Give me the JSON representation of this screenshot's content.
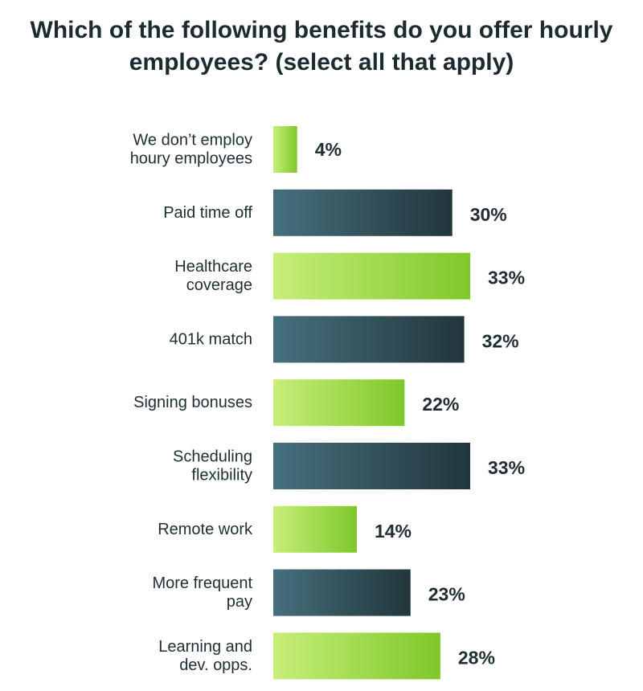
{
  "title_lines": [
    "Which of the following benefits do you offer hourly",
    "employees? (select all that apply)"
  ],
  "colors": {
    "green_start": "#c7ee79",
    "green_end": "#7ec82a",
    "teal_start": "#46707d",
    "teal_end": "#22363d"
  },
  "chart_data": {
    "type": "bar",
    "orientation": "horizontal",
    "title": "Which of the following benefits do you offer hourly employees? (select all that apply)",
    "categories": [
      [
        "We don’t employ",
        "houry employees"
      ],
      [
        "Paid time off"
      ],
      [
        "Healthcare",
        "coverage"
      ],
      [
        "401k match"
      ],
      [
        "Signing bonuses"
      ],
      [
        "Scheduling",
        "flexibility"
      ],
      [
        "Remote work"
      ],
      [
        "More frequent",
        "pay"
      ],
      [
        "Learning and",
        "dev. opps."
      ]
    ],
    "values": [
      4,
      30,
      33,
      32,
      22,
      33,
      14,
      23,
      28
    ],
    "value_labels": [
      "4%",
      "30%",
      "33%",
      "32%",
      "22%",
      "33%",
      "14%",
      "23%",
      "28%"
    ],
    "bar_colors": [
      "green",
      "teal",
      "green",
      "teal",
      "green",
      "teal",
      "green",
      "teal",
      "green"
    ],
    "xlim": [
      0,
      33
    ],
    "grid": false,
    "legend": "none"
  }
}
